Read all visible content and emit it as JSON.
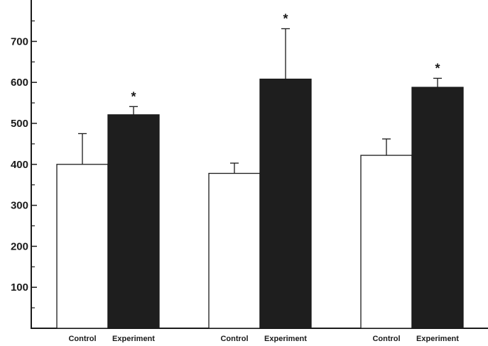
{
  "chart_data": {
    "type": "bar",
    "title": "",
    "xlabel": "",
    "ylabel": "",
    "ylim": [
      0,
      800
    ],
    "yticks": [
      100,
      200,
      300,
      400,
      500,
      600,
      700
    ],
    "ytick_labels": [
      "100",
      "200",
      "300",
      "400",
      "500",
      "600",
      "700"
    ],
    "grid": false,
    "legend": "none",
    "groups": [
      {
        "bars": [
          {
            "label": "Control",
            "value": 400,
            "error": 75,
            "color": "#ffffff"
          },
          {
            "label": "Experiment",
            "value": 521,
            "error": 20,
            "color": "#1e1e1e",
            "annotation": "*"
          }
        ]
      },
      {
        "bars": [
          {
            "label": "Control",
            "value": 378,
            "error": 25,
            "color": "#ffffff"
          },
          {
            "label": "Experiment",
            "value": 608,
            "error": 123,
            "color": "#1e1e1e",
            "annotation": "*"
          }
        ]
      },
      {
        "bars": [
          {
            "label": "Control",
            "value": 422,
            "error": 40,
            "color": "#ffffff"
          },
          {
            "label": "Experiment",
            "value": 588,
            "error": 22,
            "color": "#1e1e1e",
            "annotation": "*"
          }
        ]
      }
    ]
  }
}
